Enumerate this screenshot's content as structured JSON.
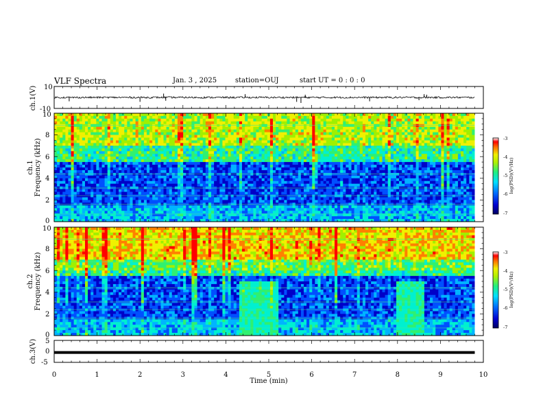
{
  "header": {
    "title": "VLF Spectra",
    "date": "Jan. 3 , 2025",
    "station": "station=OUJ",
    "start": "start UT = 0 : 0 : 0"
  },
  "chart_data": [
    {
      "type": "line",
      "id": "ch1-waveform",
      "ylabel": "ch.1(V)",
      "ylim": [
        -10,
        10
      ],
      "yticks": [
        "10",
        "-10"
      ],
      "xlim": [
        0,
        10
      ],
      "baseline": 0,
      "spikes": [
        {
          "t": 0.35,
          "v": -3.5
        },
        {
          "t": 2.0,
          "v": -4.0
        },
        {
          "t": 2.55,
          "v": 3.5
        },
        {
          "t": 2.6,
          "v": -3.0
        },
        {
          "t": 4.45,
          "v": 3.0
        },
        {
          "t": 5.65,
          "v": -4.0
        },
        {
          "t": 5.75,
          "v": -5.0
        },
        {
          "t": 5.85,
          "v": 2.5
        },
        {
          "t": 7.35,
          "v": -3.5
        },
        {
          "t": 8.5,
          "v": -2.5
        },
        {
          "t": 8.62,
          "v": 3.0
        },
        {
          "t": 8.68,
          "v": 2.5
        }
      ]
    },
    {
      "type": "heatmap",
      "id": "ch1-spectrogram",
      "ylabel": "ch.1",
      "ylabel2": "Frequency (kHz)",
      "ylim": [
        0,
        10
      ],
      "yticks": [
        "0",
        "2",
        "4",
        "6",
        "8",
        "10"
      ],
      "xlim": [
        0,
        9.8
      ],
      "colorbar": {
        "label": "log(PSD)(V²/Hz)",
        "ticks": [
          "-3",
          "-4",
          "-5",
          "-6",
          "-7"
        ],
        "range": [
          -7,
          -3
        ]
      }
    },
    {
      "type": "heatmap",
      "id": "ch2-spectrogram",
      "ylabel": "ch.2",
      "ylabel2": "Frequency (kHz)",
      "ylim": [
        0,
        10
      ],
      "yticks": [
        "0",
        "2",
        "4",
        "6",
        "8",
        "10"
      ],
      "xlim": [
        0,
        9.8
      ],
      "bright_intervals_min": [
        [
          4.3,
          5.2
        ],
        [
          8.0,
          8.6
        ]
      ],
      "colorbar": {
        "label": "log(PSD)(V²/Hz)",
        "ticks": [
          "-3",
          "-4",
          "-5",
          "-6",
          "-7"
        ],
        "range": [
          -7,
          -3
        ]
      }
    },
    {
      "type": "line",
      "id": "ch3-waveform",
      "ylabel": "ch.3(V)",
      "ylim": [
        -5,
        5
      ],
      "yticks": [
        "5",
        "0",
        "-5"
      ],
      "xlim": [
        0,
        10
      ],
      "baseline": -0.5
    }
  ],
  "xaxis": {
    "label": "Time (min)",
    "ticks": [
      "0",
      "1",
      "2",
      "3",
      "4",
      "5",
      "6",
      "7",
      "8",
      "9",
      "10"
    ]
  },
  "colors": {
    "cmap": [
      "#000060",
      "#0000c8",
      "#0050ff",
      "#00b4ff",
      "#00f0d0",
      "#30f070",
      "#a0f000",
      "#f0f000",
      "#ff8000",
      "#ff0000"
    ]
  }
}
